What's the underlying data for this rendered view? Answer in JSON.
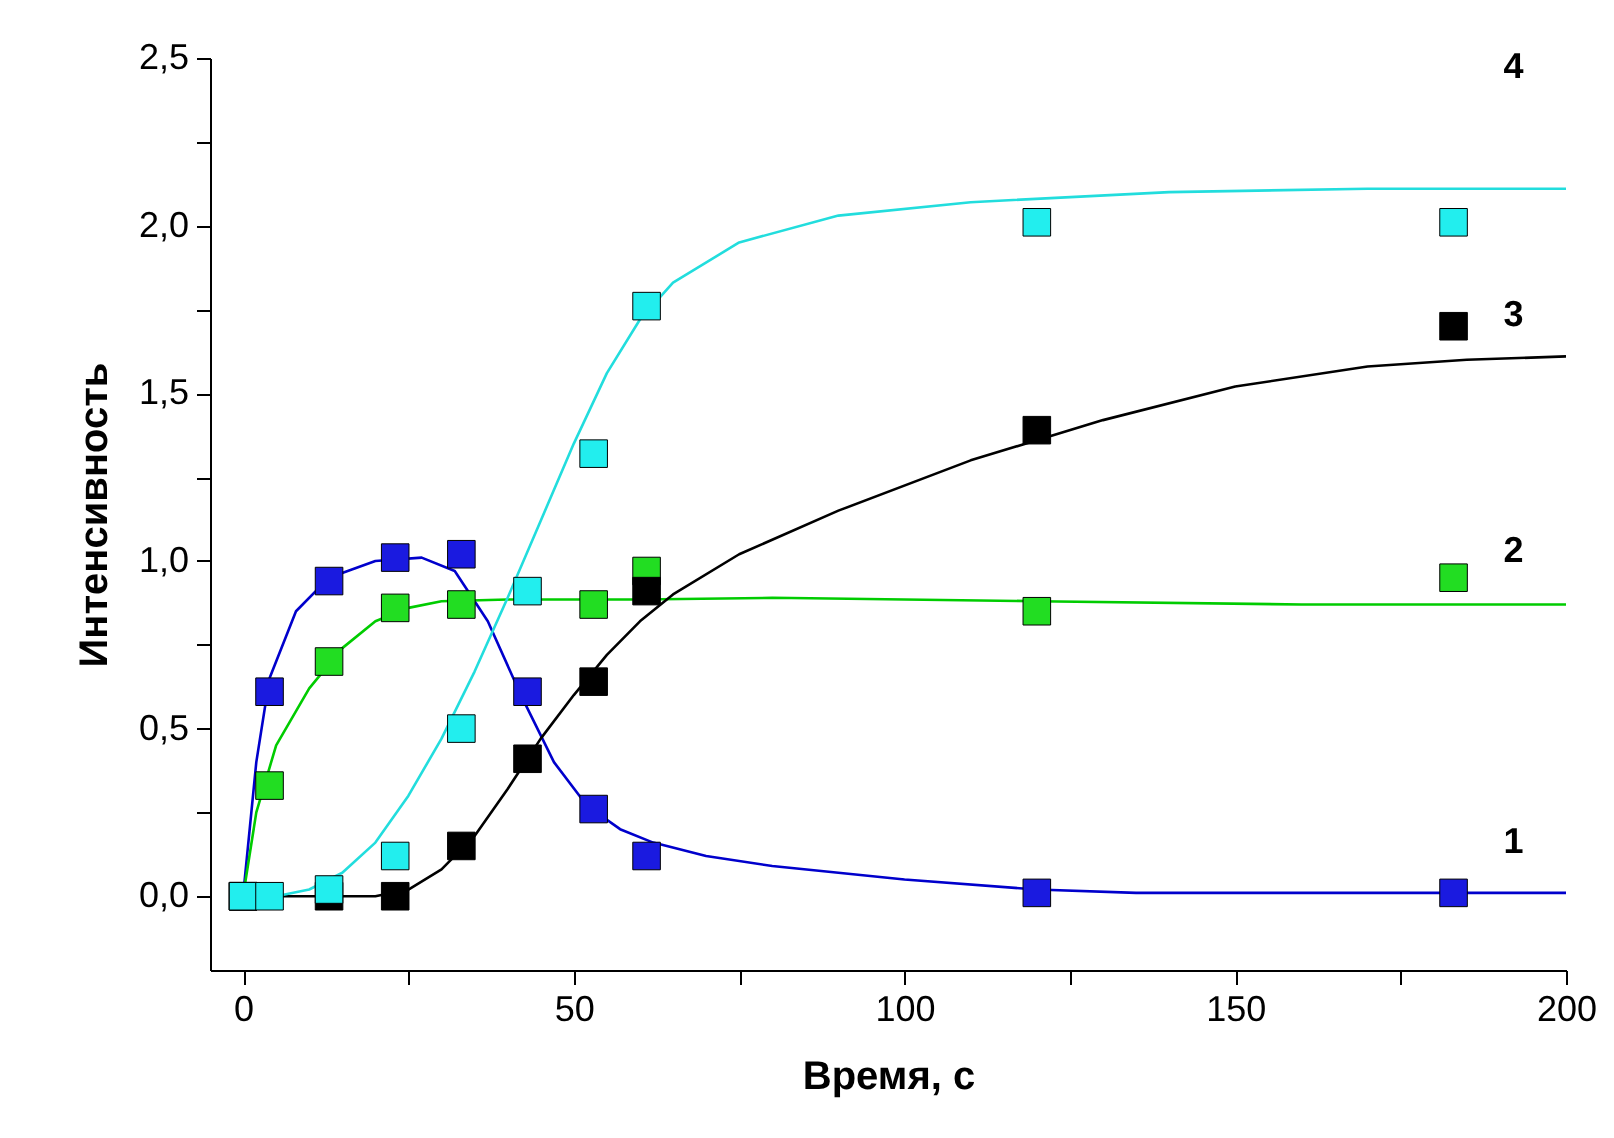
{
  "chart_data": {
    "type": "scatter",
    "xlabel": "Время, с",
    "ylabel": "Интенсивность",
    "grid": false,
    "xlim": [
      -5,
      200
    ],
    "ylim": [
      -0.22,
      2.5
    ],
    "xticks": [
      0,
      {
        "value": 25,
        "label": null
      },
      50,
      {
        "value": 75,
        "label": null
      },
      100,
      {
        "value": 125,
        "label": null
      },
      150,
      {
        "value": 175,
        "label": null
      },
      200
    ],
    "yticks": [
      {
        "value": 0,
        "label": "0,0"
      },
      {
        "value": 0.25,
        "label": null
      },
      {
        "value": 0.5,
        "label": "0,5"
      },
      {
        "value": 0.75,
        "label": null
      },
      {
        "value": 1,
        "label": "1,0"
      },
      {
        "value": 1.25,
        "label": null
      },
      {
        "value": 1.5,
        "label": "1,5"
      },
      {
        "value": 1.75,
        "label": null
      },
      {
        "value": 2,
        "label": "2,0"
      },
      {
        "value": 2.25,
        "label": null
      },
      {
        "value": 2.5,
        "label": "2,5"
      }
    ],
    "series": [
      {
        "type": "line",
        "color": "#0000cc",
        "x": [
          0,
          2,
          4,
          8,
          13,
          20,
          27,
          32,
          37,
          42,
          47,
          52,
          57,
          62,
          70,
          80,
          100,
          120,
          135,
          200
        ],
        "values": [
          0,
          0.4,
          0.65,
          0.85,
          0.95,
          1.0,
          1.01,
          0.97,
          0.82,
          0.6,
          0.4,
          0.27,
          0.2,
          0.16,
          0.12,
          0.09,
          0.05,
          0.02,
          0.01,
          0.01
        ]
      },
      {
        "type": "line",
        "color": "#00cc00",
        "x": [
          0,
          2,
          5,
          10,
          15,
          20,
          25,
          30,
          40,
          60,
          80,
          120,
          160,
          200
        ],
        "values": [
          0,
          0.25,
          0.45,
          0.62,
          0.74,
          0.82,
          0.86,
          0.88,
          0.885,
          0.885,
          0.89,
          0.88,
          0.87,
          0.87
        ]
      },
      {
        "type": "line",
        "color": "#000000",
        "x": [
          0,
          20,
          25,
          30,
          35,
          40,
          45,
          50,
          55,
          60,
          65,
          75,
          90,
          110,
          130,
          150,
          170,
          185,
          200
        ],
        "values": [
          0,
          0,
          0.02,
          0.08,
          0.18,
          0.32,
          0.47,
          0.6,
          0.72,
          0.82,
          0.9,
          1.02,
          1.15,
          1.3,
          1.42,
          1.52,
          1.58,
          1.6,
          1.61
        ]
      },
      {
        "type": "line",
        "color": "#22dddd",
        "x": [
          0,
          5,
          10,
          15,
          20,
          25,
          30,
          35,
          40,
          45,
          50,
          55,
          60,
          65,
          75,
          90,
          110,
          140,
          170,
          200
        ],
        "values": [
          0,
          0,
          0.02,
          0.07,
          0.16,
          0.3,
          0.47,
          0.67,
          0.89,
          1.12,
          1.35,
          1.56,
          1.72,
          1.83,
          1.95,
          2.03,
          2.07,
          2.1,
          2.11,
          2.11
        ]
      },
      {
        "name": "1",
        "marker": "square",
        "color": "#1a1ae0",
        "x": [
          0,
          4,
          13,
          23,
          33,
          43,
          53,
          61,
          120,
          183
        ],
        "values": [
          0,
          0.61,
          0.94,
          1.01,
          1.02,
          0.61,
          0.26,
          0.12,
          0.01,
          0.01
        ]
      },
      {
        "name": "2",
        "marker": "square",
        "color": "#22dd22",
        "x": [
          0,
          4,
          13,
          23,
          33,
          53,
          61,
          120,
          183
        ],
        "values": [
          0,
          0.33,
          0.7,
          0.86,
          0.87,
          0.87,
          0.97,
          0.85,
          0.95
        ]
      },
      {
        "name": "3",
        "marker": "square",
        "color": "#000000",
        "x": [
          0,
          13,
          23,
          33,
          43,
          53,
          61,
          120,
          183
        ],
        "values": [
          0,
          0,
          0,
          0.15,
          0.41,
          0.64,
          0.91,
          1.39,
          1.7
        ]
      },
      {
        "name": "4",
        "marker": "square",
        "color": "#22eeee",
        "x": [
          0,
          4,
          13,
          23,
          33,
          43,
          53,
          61,
          120,
          183
        ],
        "values": [
          0,
          0,
          0.02,
          0.12,
          0.5,
          0.91,
          1.32,
          1.76,
          2.01,
          2.01
        ]
      }
    ]
  }
}
